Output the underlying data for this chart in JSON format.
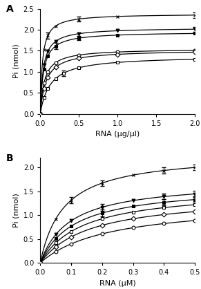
{
  "panel_A": {
    "xlabel": "RNA (μg/μl)",
    "ylabel": "Pi (nmol)",
    "xlim": [
      0,
      2.0
    ],
    "ylim": [
      0,
      2.5
    ],
    "xticks": [
      0,
      0.5,
      1.0,
      1.5,
      2.0
    ],
    "yticks": [
      0,
      0.5,
      1.0,
      1.5,
      2.0,
      2.5
    ],
    "series": [
      {
        "x_pts": [
          0,
          0.05,
          0.1,
          0.2,
          0.5,
          1.0,
          2.0
        ],
        "yerr_pts": [
          0,
          0.0,
          0.08,
          0.0,
          0.06,
          0.0,
          0.07
        ],
        "marker": "x",
        "fillstyle": "full",
        "vmax": 2.38,
        "km": 0.028
      },
      {
        "x_pts": [
          0,
          0.05,
          0.1,
          0.2,
          0.5,
          1.0,
          2.0
        ],
        "yerr_pts": [
          0,
          0.0,
          0.0,
          0.0,
          0.0,
          0.0,
          0.06
        ],
        "marker": "v",
        "fillstyle": "full",
        "vmax": 2.05,
        "km": 0.038
      },
      {
        "x_pts": [
          0,
          0.05,
          0.1,
          0.2,
          0.5,
          1.0,
          2.0
        ],
        "yerr_pts": [
          0,
          0.0,
          0.0,
          0.07,
          0.05,
          0.0,
          0.0
        ],
        "marker": "s",
        "fillstyle": "full",
        "vmax": 1.95,
        "km": 0.042
      },
      {
        "x_pts": [
          0,
          0.05,
          0.1,
          0.2,
          0.5,
          1.0,
          2.0
        ],
        "yerr_pts": [
          0,
          0.0,
          0.0,
          0.0,
          0.0,
          0.0,
          0.0
        ],
        "marker": "o",
        "fillstyle": "none",
        "vmax": 1.55,
        "km": 0.055
      },
      {
        "x_pts": [
          0,
          0.05,
          0.1,
          0.2,
          0.5,
          1.0,
          2.0
        ],
        "yerr_pts": [
          0,
          0.0,
          0.0,
          0.0,
          0.0,
          0.0,
          0.0
        ],
        "marker": "D",
        "fillstyle": "none",
        "vmax": 1.52,
        "km": 0.075
      },
      {
        "x_pts": [
          0,
          0.05,
          0.1,
          0.2,
          0.3,
          0.5,
          1.0,
          2.0
        ],
        "yerr_pts": [
          0,
          0.0,
          0.0,
          0.0,
          0.07,
          0.0,
          0.0,
          0.0
        ],
        "marker": "s",
        "fillstyle": "none",
        "vmax": 1.38,
        "km": 0.13
      }
    ]
  },
  "panel_B": {
    "xlabel": "RNA (μM)",
    "ylabel": "Pi (nmol)",
    "xlim": [
      0,
      0.5
    ],
    "ylim": [
      0,
      2.2
    ],
    "xticks": [
      0,
      0.1,
      0.2,
      0.3,
      0.4,
      0.5
    ],
    "yticks": [
      0,
      0.5,
      1.0,
      1.5,
      2.0
    ],
    "series": [
      {
        "x_pts": [
          0,
          0.05,
          0.1,
          0.2,
          0.3,
          0.4,
          0.5
        ],
        "yerr_pts": [
          0,
          0.0,
          0.07,
          0.06,
          0.0,
          0.06,
          0.06
        ],
        "marker": "x",
        "fillstyle": "full",
        "vmax": 2.3,
        "km": 0.075
      },
      {
        "x_pts": [
          0,
          0.05,
          0.1,
          0.2,
          0.3,
          0.4,
          0.5
        ],
        "yerr_pts": [
          0,
          0.0,
          0.0,
          0.07,
          0.0,
          0.06,
          0.06
        ],
        "marker": "v",
        "fillstyle": "full",
        "vmax": 1.72,
        "km": 0.095
      },
      {
        "x_pts": [
          0,
          0.05,
          0.1,
          0.2,
          0.3,
          0.4,
          0.5
        ],
        "yerr_pts": [
          0,
          0.0,
          0.0,
          0.07,
          0.0,
          0.06,
          0.06
        ],
        "marker": "s",
        "fillstyle": "full",
        "vmax": 1.62,
        "km": 0.11
      },
      {
        "x_pts": [
          0,
          0.05,
          0.1,
          0.2,
          0.3,
          0.4,
          0.5
        ],
        "yerr_pts": [
          0,
          0.0,
          0.0,
          0.0,
          0.0,
          0.0,
          0.0
        ],
        "marker": "s",
        "fillstyle": "none",
        "vmax": 1.55,
        "km": 0.135
      },
      {
        "x_pts": [
          0,
          0.05,
          0.1,
          0.2,
          0.3,
          0.4,
          0.5
        ],
        "yerr_pts": [
          0,
          0.0,
          0.0,
          0.0,
          0.0,
          0.0,
          0.0
        ],
        "marker": "D",
        "fillstyle": "none",
        "vmax": 1.42,
        "km": 0.16
      },
      {
        "x_pts": [
          0,
          0.05,
          0.1,
          0.2,
          0.3,
          0.4,
          0.5
        ],
        "yerr_pts": [
          0,
          0.0,
          0.0,
          0.0,
          0.0,
          0.0,
          0.0
        ],
        "marker": "o",
        "fillstyle": "none",
        "vmax": 1.28,
        "km": 0.22
      }
    ]
  },
  "label_fontsize": 8,
  "tick_fontsize": 7,
  "panel_label_fontsize": 10,
  "linewidth": 0.9,
  "markersize": 3.5,
  "capsize": 2
}
